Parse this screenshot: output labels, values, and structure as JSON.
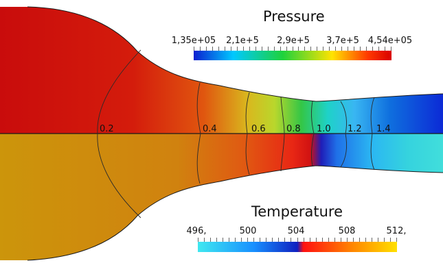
{
  "pressure_legend": {
    "title": "Pressure",
    "ticks": [
      "1,35e+05",
      "2,1e+5",
      "2,9e+5",
      "3,7e+5",
      "4,54e+05"
    ],
    "colormap": [
      "#0a1fd0",
      "#00c8ff",
      "#1ed23c",
      "#ffe300",
      "#ff3a00",
      "#d90000"
    ]
  },
  "temperature_legend": {
    "title": "Temperature",
    "ticks": [
      "496,",
      "500",
      "504",
      "508",
      "512,"
    ],
    "colormap": [
      "#40e8f0",
      "#1890ff",
      "#1020c0",
      "#ff1010",
      "#ff8800",
      "#ffe000"
    ]
  },
  "mach_labels": [
    "0.2",
    "0.4",
    "0.6",
    "0.8",
    "1.0",
    "1.2",
    "1.4"
  ],
  "colors": {
    "pressure_inlet": "#cf0d0d",
    "temperature_inlet": "#cc960b",
    "outline": "#1a1a1a"
  }
}
